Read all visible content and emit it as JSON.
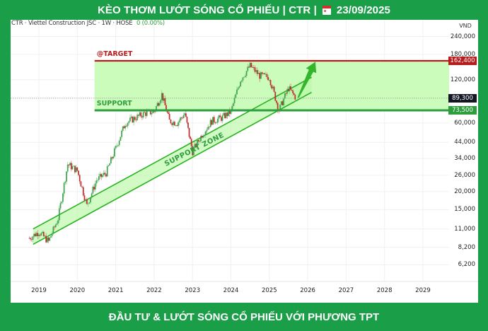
{
  "header": {
    "title_left": "KÈO THƠM LƯỚT SÓNG CỔ PHIẾU | CTR |",
    "calendar_icon": "calendar-icon",
    "date": "23/09/2025"
  },
  "legend": {
    "symbol_line": "CTR · Viettel Construction JSC · 1W · HOSE",
    "change": "0 (0.00%)"
  },
  "axis": {
    "currency": "VND",
    "y_ticks": [
      "240,000",
      "180,000",
      "120,000",
      "60,000",
      "44,000",
      "34,000",
      "26,000",
      "20,000",
      "15,000",
      "11,000",
      "8,200",
      "6,200"
    ],
    "x_ticks": [
      "2019",
      "2020",
      "2021",
      "2022",
      "2023",
      "2024",
      "2025",
      "2026",
      "2027",
      "2028",
      "2029"
    ]
  },
  "price_tags": {
    "target": {
      "label": "162,400",
      "color": "#b71c1c"
    },
    "current": {
      "label": "89,300",
      "color": "#131722"
    },
    "support": {
      "label": "73,500",
      "color": "#2e9d3e"
    }
  },
  "annotations": {
    "target_label": "@TARGET",
    "support_label": "SUPPORT",
    "zone_label": "SUPPORT ZONE"
  },
  "footer": {
    "text": "ĐẦU TƯ & LƯỚT SÓNG CỔ PHIẾU VỚI PHƯƠNG TPT"
  },
  "colors": {
    "brand_green": "#1a9e48",
    "up": "#2e9d3e",
    "down": "#c62828",
    "zone_fill": "#ccfcbc",
    "target_line": "#b71c1c",
    "support_line": "#2e9d3e"
  },
  "chart_data": {
    "type": "candlestick",
    "title": "CTR · Viettel Construction JSC · 1W · HOSE",
    "xlabel": "",
    "ylabel": "VND",
    "scale": "log",
    "ylim": [
      5500,
      260000
    ],
    "x_ticks": [
      "2019",
      "2020",
      "2021",
      "2022",
      "2023",
      "2024",
      "2025",
      "2026",
      "2027",
      "2028",
      "2029"
    ],
    "legend_position": "top-left",
    "grid": true,
    "approx_close_series": {
      "x": [
        2018.75,
        2019.0,
        2019.25,
        2019.5,
        2019.75,
        2020.0,
        2020.25,
        2020.5,
        2020.75,
        2021.0,
        2021.25,
        2021.5,
        2021.75,
        2022.0,
        2022.2,
        2022.4,
        2022.6,
        2022.8,
        2023.0,
        2023.25,
        2023.5,
        2023.75,
        2024.0,
        2024.25,
        2024.5,
        2024.75,
        2025.0,
        2025.25,
        2025.5,
        2025.7
      ],
      "close": [
        9500,
        10500,
        9000,
        13000,
        31000,
        28000,
        16000,
        24000,
        27000,
        40000,
        60000,
        65000,
        70000,
        72000,
        95000,
        62000,
        60000,
        70000,
        38000,
        50000,
        62000,
        65000,
        72000,
        120000,
        150000,
        128000,
        125000,
        73500,
        105000,
        89300
      ]
    },
    "levels": {
      "target": 162400,
      "last": 89300,
      "support": 73500
    },
    "trend_channel": {
      "label": "SUPPORT ZONE",
      "lower_start": {
        "x": 2018.85,
        "price": 8600
      },
      "lower_end": {
        "x": 2026.1,
        "price": 98000
      },
      "upper_start": {
        "x": 2018.85,
        "price": 11000
      },
      "upper_end": {
        "x": 2026.1,
        "price": 125000
      }
    },
    "target_zone": {
      "from": 73500,
      "to": 162400,
      "x_start": 2020.45
    },
    "arrow": {
      "from": {
        "x": 2025.75,
        "price": 90000
      },
      "to": {
        "x": 2026.2,
        "price": 160000
      }
    }
  }
}
